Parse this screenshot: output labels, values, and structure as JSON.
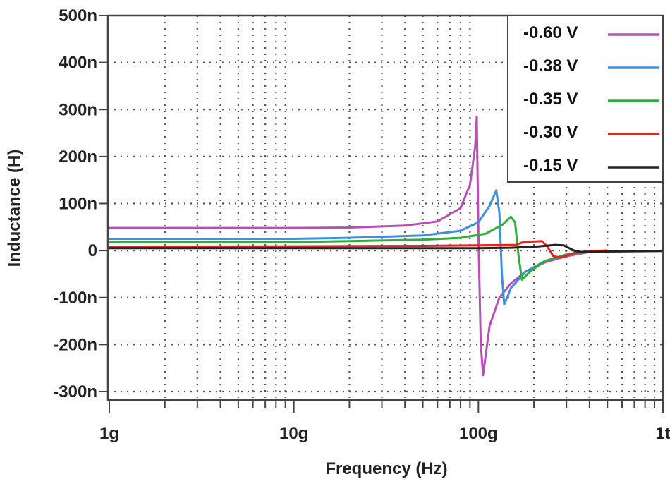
{
  "chart_data": {
    "type": "line",
    "xlabel": "Frequency (Hz)",
    "ylabel": "Inductance (H)",
    "x_scale": "log",
    "xlim": [
      1000000000.0,
      1000000000000.0
    ],
    "ylim": [
      -3e-07,
      5e-07
    ],
    "x_ticks": [
      {
        "v": 1000000000.0,
        "label": "1g"
      },
      {
        "v": 10000000000.0,
        "label": "10g"
      },
      {
        "v": 100000000000.0,
        "label": "100g"
      },
      {
        "v": 1000000000000.0,
        "label": "1t"
      }
    ],
    "y_ticks": [
      {
        "v": 5e-07,
        "label": "500n"
      },
      {
        "v": 4e-07,
        "label": "400n"
      },
      {
        "v": 3e-07,
        "label": "300n"
      },
      {
        "v": 2e-07,
        "label": "200n"
      },
      {
        "v": 1e-07,
        "label": "100n"
      },
      {
        "v": 0,
        "label": "0"
      },
      {
        "v": -1e-07,
        "label": "-100n"
      },
      {
        "v": -2e-07,
        "label": "-200n"
      },
      {
        "v": -3e-07,
        "label": "-300n"
      }
    ],
    "grid": true,
    "legend_position": "top-right",
    "series": [
      {
        "name": "-0.60 V",
        "color": "#b84fb5",
        "x_hz": [
          1000000000.0,
          10000000000.0,
          20000000000.0,
          40000000000.0,
          60000000000.0,
          80000000000.0,
          90000000000.0,
          96000000000.0,
          98000000000.0,
          100000000000.0,
          103000000000.0,
          106000000000.0,
          115000000000.0,
          130000000000.0,
          150000000000.0,
          180000000000.0,
          230000000000.0,
          300000000000.0,
          400000000000.0,
          500000000000.0
        ],
        "y_nH": [
          48,
          48,
          49,
          53,
          62,
          90,
          140,
          220,
          285,
          40,
          -200,
          -265,
          -160,
          -100,
          -70,
          -45,
          -25,
          -12,
          -3,
          0
        ]
      },
      {
        "name": "-0.38 V",
        "color": "#3e8fdc",
        "x_hz": [
          1000000000.0,
          10000000000.0,
          20000000000.0,
          50000000000.0,
          80000000000.0,
          100000000000.0,
          115000000000.0,
          125000000000.0,
          130000000000.0,
          134000000000.0,
          138000000000.0,
          150000000000.0,
          180000000000.0,
          230000000000.0,
          300000000000.0,
          400000000000.0,
          500000000000.0
        ],
        "y_nH": [
          25,
          25,
          27,
          32,
          42,
          60,
          95,
          128,
          80,
          -50,
          -115,
          -80,
          -45,
          -22,
          -10,
          -2,
          0
        ],
        "_": ""
      },
      {
        "name": "-0.35 V",
        "color": "#2fae3b",
        "x_hz": [
          1000000000.0,
          10000000000.0,
          20000000000.0,
          50000000000.0,
          80000000000.0,
          110000000000.0,
          135000000000.0,
          150000000000.0,
          158000000000.0,
          165000000000.0,
          172000000000.0,
          190000000000.0,
          230000000000.0,
          300000000000.0,
          400000000000.0,
          500000000000.0
        ],
        "y_nH": [
          18,
          18,
          20,
          23,
          27,
          36,
          55,
          72,
          60,
          -10,
          -62,
          -45,
          -22,
          -8,
          -2,
          0
        ]
      },
      {
        "name": "-0.30 V",
        "color": "#e8231f",
        "x_hz": [
          1000000000.0,
          10000000000.0,
          50000000000.0,
          100000000000.0,
          160000000000.0,
          175000000000.0,
          220000000000.0,
          235000000000.0,
          255000000000.0,
          280000000000.0,
          330000000000.0,
          400000000000.0,
          500000000000.0
        ],
        "y_nH": [
          8,
          9,
          10,
          11,
          12,
          18,
          20,
          10,
          -12,
          -15,
          -5,
          -1,
          0
        ]
      },
      {
        "name": "-0.15 V",
        "color": "#222222",
        "x_hz": [
          1000000000.0,
          10000000000.0,
          50000000000.0,
          100000000000.0,
          150000000000.0,
          200000000000.0,
          260000000000.0,
          290000000000.0,
          330000000000.0,
          360000000000.0,
          500000000000.0,
          1000000000000.0
        ],
        "y_nH": [
          5,
          5,
          5,
          5,
          6,
          8,
          12,
          11,
          0,
          -3,
          -2,
          -1
        ]
      }
    ]
  }
}
